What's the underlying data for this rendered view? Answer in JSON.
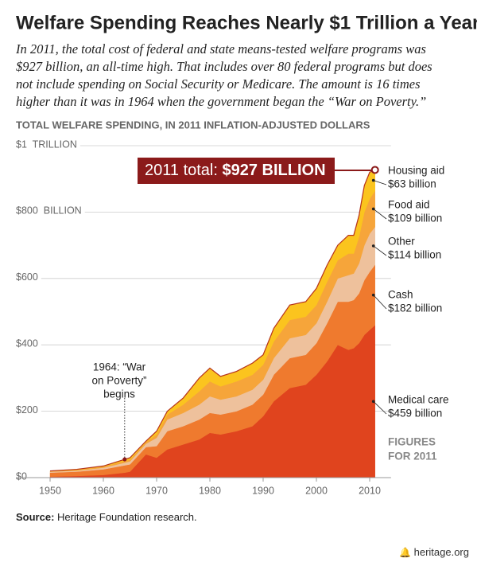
{
  "chart_data": {
    "type": "stacked_area",
    "title": "Welfare Spending Reaches Nearly $1 Trillion a Year",
    "subtitle": [
      "In 2011, the total cost of federal and state means-tested welfare programs was",
      "$927 billion, an all-time high. That includes over 80 federal programs but does",
      "not include spending on Social Security or Medicare. The amount is 16 times",
      "higher than it was in 1964 when the government began the “War on Poverty.”"
    ],
    "y_axis_title": "TOTAL WELFARE SPENDING, IN 2011 INFLATION-ADJUSTED DOLLARS",
    "x": [
      1950,
      1955,
      1960,
      1964,
      1965,
      1968,
      1970,
      1972,
      1975,
      1978,
      1980,
      1982,
      1985,
      1988,
      1990,
      1992,
      1995,
      1998,
      2000,
      2002,
      2004,
      2006,
      2007,
      2008,
      2009,
      2010,
      2011
    ],
    "series": [
      {
        "name": "Medical care",
        "end_label": "$459 billion",
        "color": "#e0441e",
        "values": [
          3,
          5,
          8,
          15,
          18,
          70,
          60,
          85,
          100,
          115,
          135,
          130,
          140,
          155,
          185,
          230,
          270,
          280,
          310,
          350,
          400,
          385,
          390,
          405,
          430,
          445,
          459
        ]
      },
      {
        "name": "Cash",
        "end_label": "$182 billion",
        "color": "#ef7a2e",
        "values": [
          12,
          13,
          17,
          22,
          22,
          22,
          35,
          55,
          55,
          60,
          60,
          60,
          60,
          65,
          65,
          80,
          90,
          90,
          95,
          115,
          130,
          145,
          145,
          150,
          165,
          175,
          182
        ]
      },
      {
        "name": "Other",
        "end_label": "$114 billion",
        "color": "#eec19c",
        "values": [
          3,
          3,
          5,
          8,
          9,
          10,
          25,
          35,
          40,
          45,
          50,
          45,
          45,
          45,
          45,
          50,
          60,
          60,
          60,
          65,
          70,
          80,
          80,
          90,
          105,
          115,
          114
        ]
      },
      {
        "name": "Food aid",
        "end_label": "$109 billion",
        "color": "#f6a53a",
        "values": [
          1,
          2,
          3,
          5,
          5,
          5,
          10,
          15,
          25,
          40,
          45,
          40,
          45,
          45,
          45,
          50,
          55,
          55,
          55,
          60,
          55,
          65,
          60,
          80,
          100,
          105,
          109
        ]
      },
      {
        "name": "Housing aid",
        "end_label": "$63 billion",
        "color": "#fbc41e",
        "values": [
          1,
          2,
          2,
          5,
          6,
          3,
          10,
          10,
          20,
          40,
          40,
          30,
          30,
          35,
          30,
          40,
          45,
          45,
          50,
          50,
          45,
          55,
          55,
          65,
          80,
          80,
          63
        ]
      }
    ],
    "xlim": [
      1947,
      2014
    ],
    "xticks": [
      1950,
      1960,
      1970,
      1980,
      1990,
      2000,
      2010
    ],
    "ylim": [
      0,
      1000
    ],
    "yticks": [
      {
        "value": 0,
        "label": "$0"
      },
      {
        "value": 200,
        "label": "$200"
      },
      {
        "value": 400,
        "label": "$400"
      },
      {
        "value": 600,
        "label": "$600"
      },
      {
        "value": 800,
        "label": "$800  BILLION"
      },
      {
        "value": 1000,
        "label": "$1  TRILLION"
      }
    ],
    "grid": true,
    "annotations": {
      "total": [
        "2011 total:",
        "$927 BILLION"
      ],
      "war_on_poverty": [
        "1964: “War",
        "on Poverty”",
        "begins"
      ],
      "figures_note": [
        "FIGURES",
        "FOR 2011"
      ]
    },
    "source": {
      "label": "Source:",
      "text": "Heritage Foundation research."
    },
    "site": "heritage.org"
  }
}
